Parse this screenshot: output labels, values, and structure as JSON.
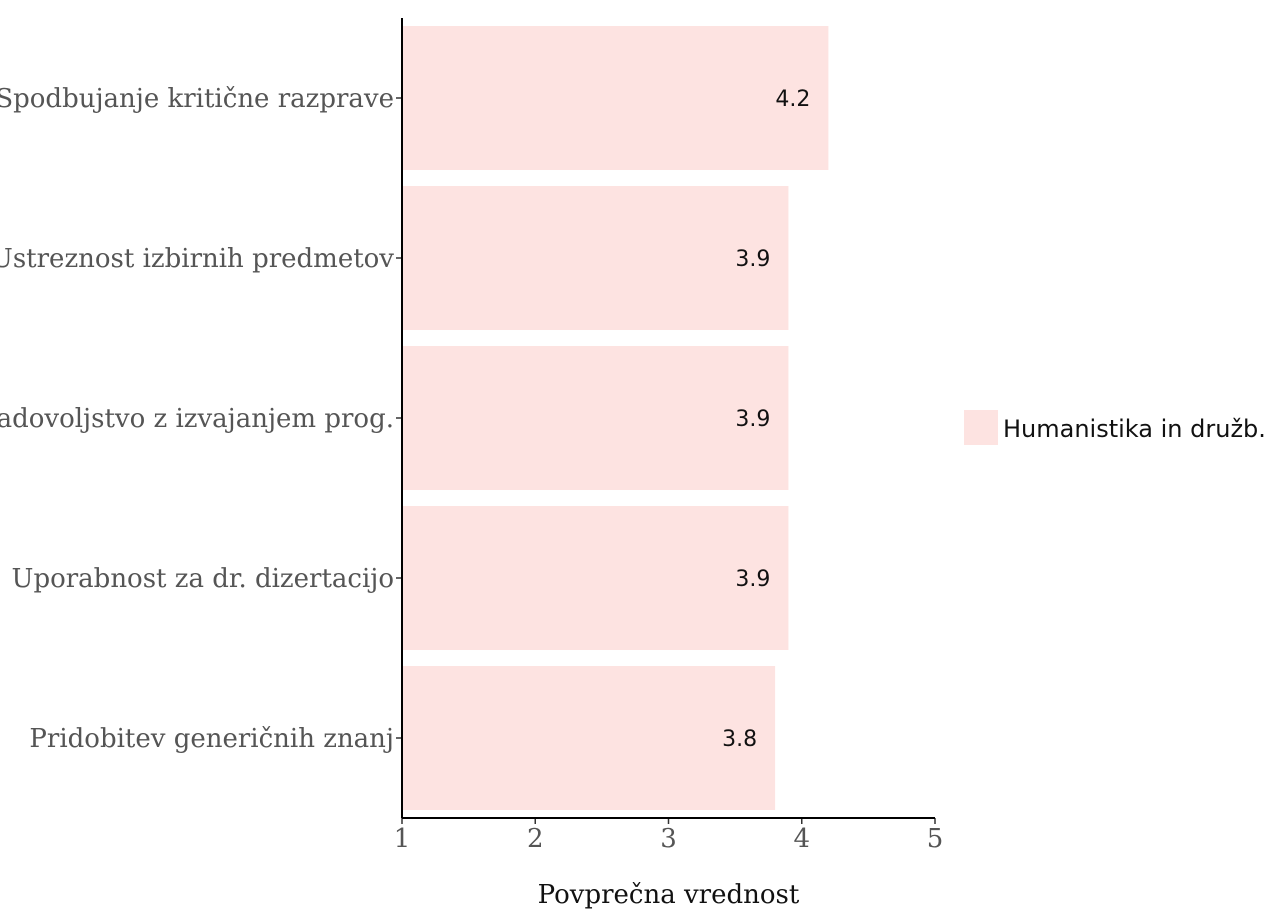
{
  "chart_data": {
    "type": "bar",
    "orientation": "horizontal",
    "categories": [
      "Spodbujanje kritične razprave",
      "Ustreznost izbirnih predmetov",
      "Zadovoljstvo z izvajanjem prog.",
      "Uporabnost za dr. dizertacijo",
      "Pridobitev generičnih znanj"
    ],
    "series": [
      {
        "name": "Humanistika in družb.",
        "values": [
          4.2,
          3.9,
          3.9,
          3.9,
          3.8
        ],
        "data_labels": [
          "4.2",
          "3.9",
          "3.9",
          "3.9",
          "3.8"
        ],
        "color": "#fde3e1"
      }
    ],
    "xlabel": "Povprečna vrednost",
    "xlim": [
      1,
      5
    ],
    "xticks": [
      "1",
      "2",
      "3",
      "4",
      "5"
    ],
    "grid": false,
    "legend": "right"
  }
}
